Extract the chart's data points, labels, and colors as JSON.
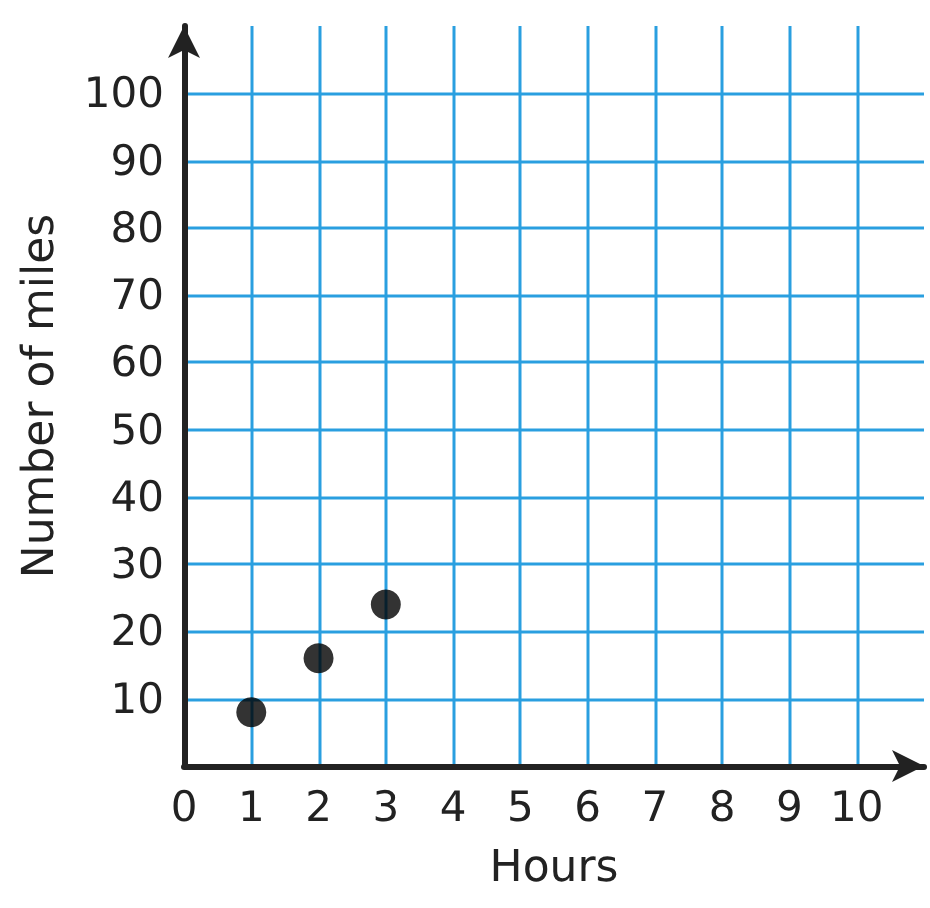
{
  "chart_data": {
    "type": "scatter",
    "xlabel": "Hours",
    "ylabel": "Number of miles",
    "x": [
      1,
      2,
      3
    ],
    "values": [
      8,
      16,
      24
    ],
    "color": "#000000",
    "xlim": [
      0,
      11
    ],
    "ylim": [
      0,
      110
    ],
    "xticks": [
      0,
      1,
      2,
      3,
      4,
      5,
      6,
      7,
      8,
      9,
      10
    ],
    "yticks": [
      10,
      20,
      30,
      40,
      50,
      60,
      70,
      80,
      90,
      100
    ],
    "grid": true,
    "marker": "circle"
  }
}
